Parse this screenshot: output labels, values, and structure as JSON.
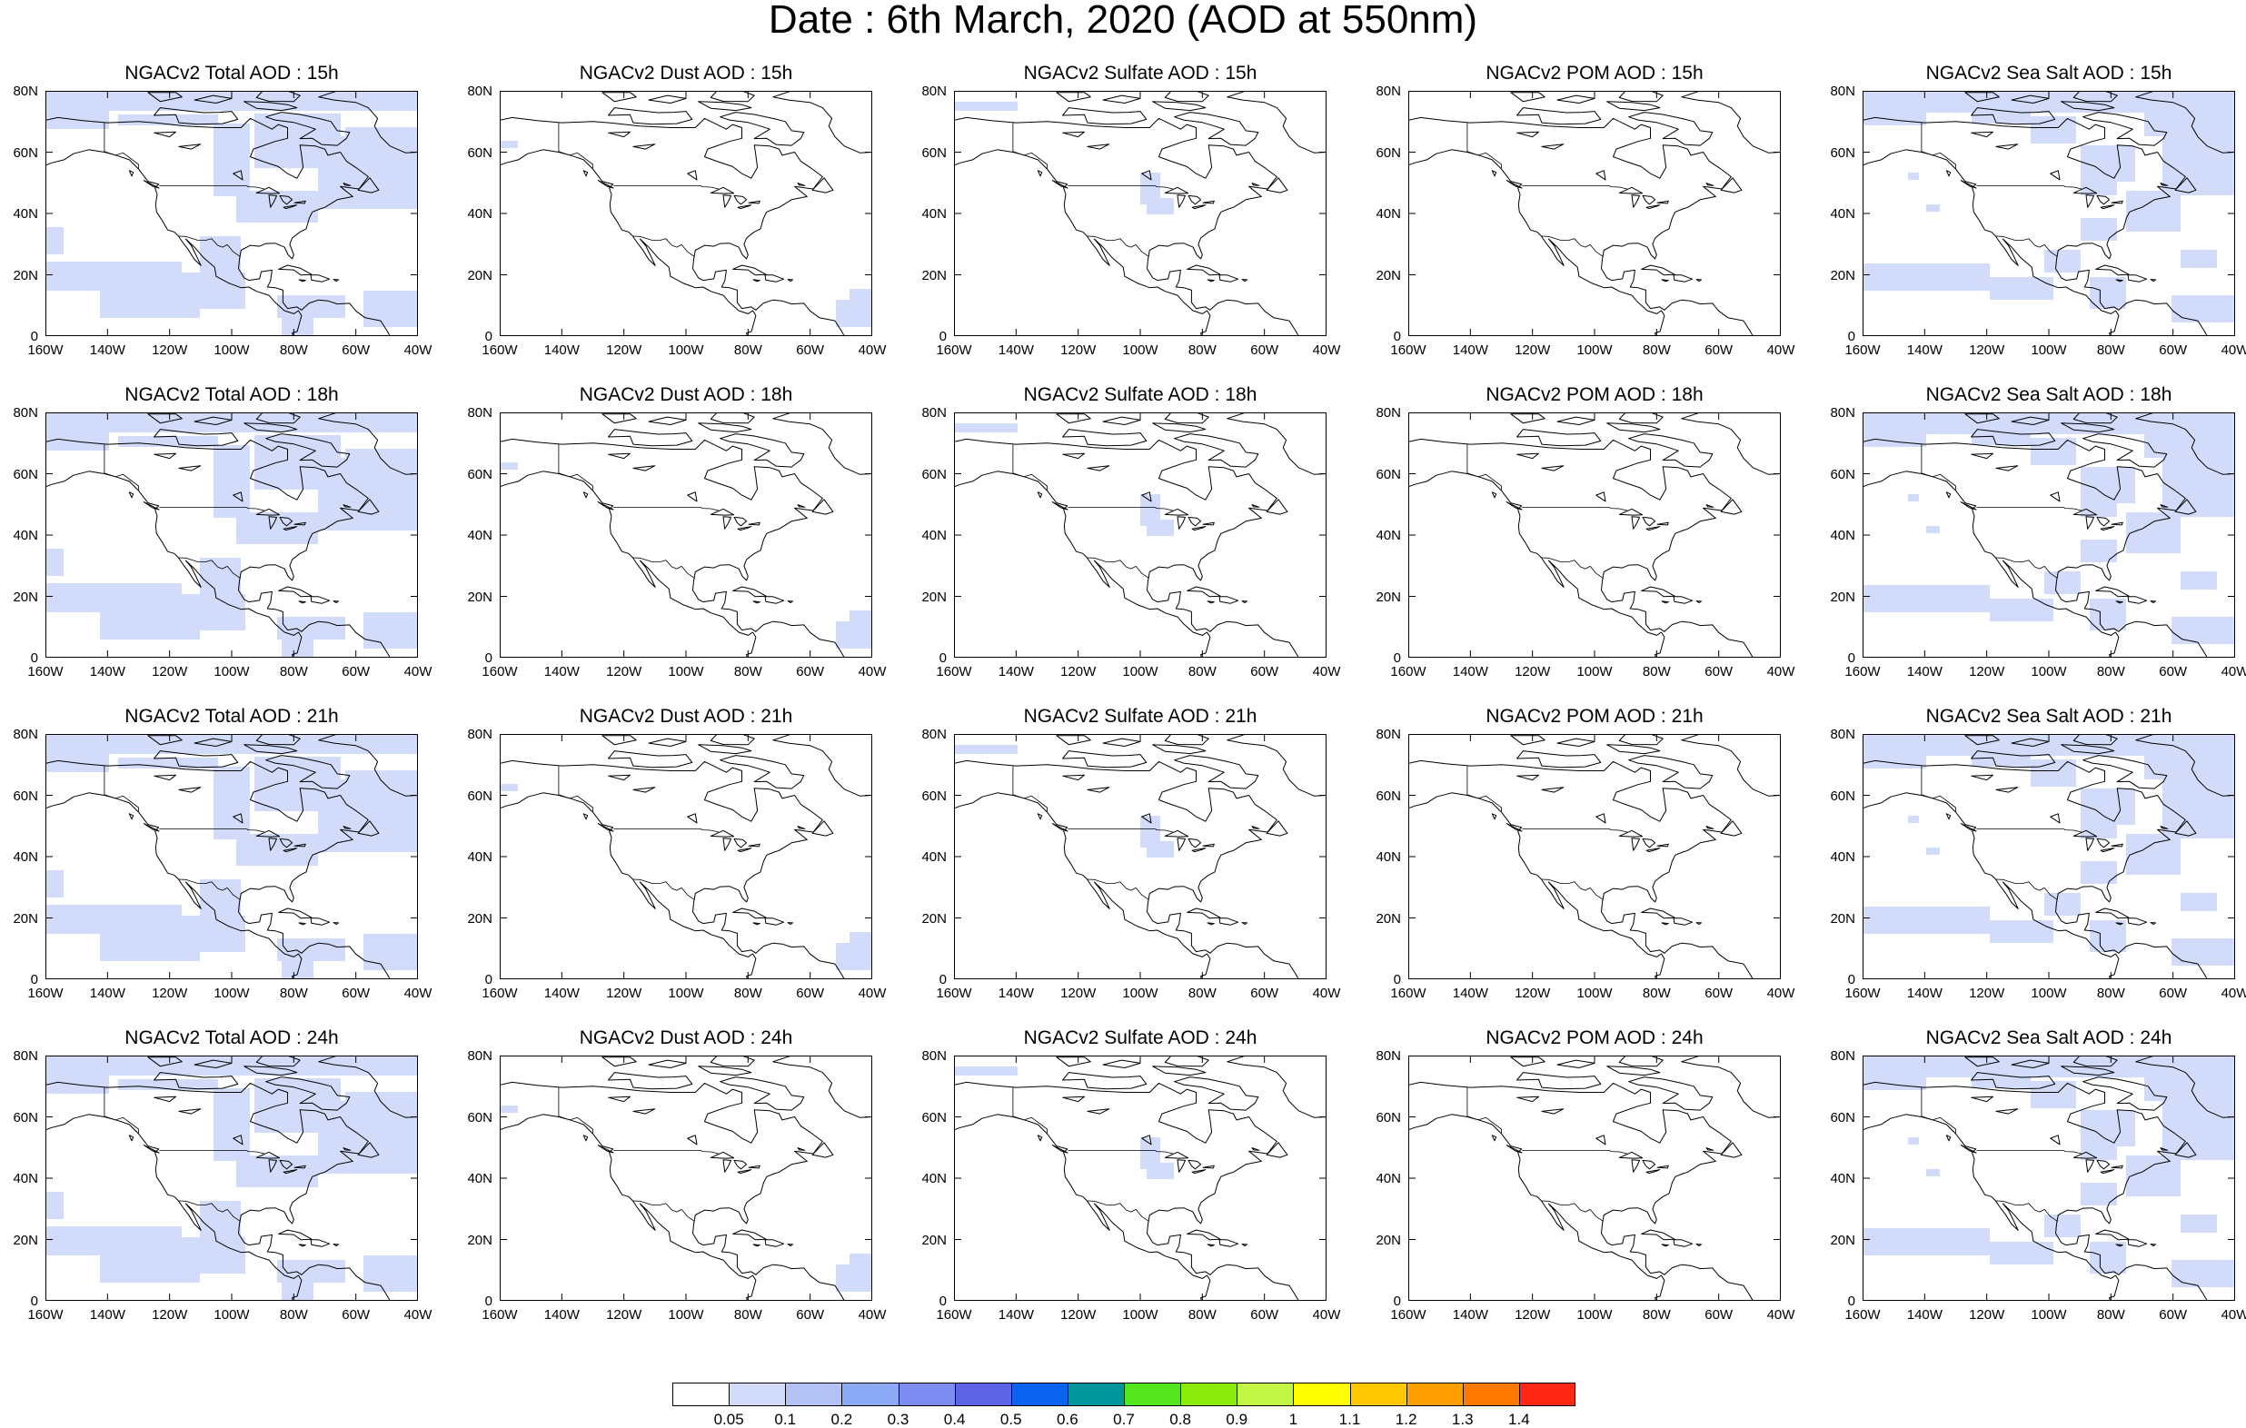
{
  "title": "Date : 6th March, 2020 (AOD at 550nm)",
  "axes": {
    "lat_labels": [
      "80N",
      "60N",
      "40N",
      "20N",
      "0"
    ],
    "lon_labels": [
      "160W",
      "140W",
      "120W",
      "100W",
      "80W",
      "60W",
      "40W"
    ],
    "lon_range": [
      -160,
      -40
    ],
    "lat_range": [
      0,
      80
    ]
  },
  "panels": [
    {
      "title": "NGACv2 Total AOD : 15h",
      "species": "total",
      "hour": 15
    },
    {
      "title": "NGACv2 Dust AOD : 15h",
      "species": "dust",
      "hour": 15
    },
    {
      "title": "NGACv2 Sulfate AOD : 15h",
      "species": "sulfate",
      "hour": 15
    },
    {
      "title": "NGACv2 POM AOD : 15h",
      "species": "pom",
      "hour": 15
    },
    {
      "title": "NGACv2 Sea Salt AOD : 15h",
      "species": "seasalt",
      "hour": 15
    },
    {
      "title": "NGACv2 Total AOD : 18h",
      "species": "total",
      "hour": 18
    },
    {
      "title": "NGACv2 Dust AOD : 18h",
      "species": "dust",
      "hour": 18
    },
    {
      "title": "NGACv2 Sulfate AOD : 18h",
      "species": "sulfate",
      "hour": 18
    },
    {
      "title": "NGACv2 POM AOD : 18h",
      "species": "pom",
      "hour": 18
    },
    {
      "title": "NGACv2 Sea Salt AOD : 18h",
      "species": "seasalt",
      "hour": 18
    },
    {
      "title": "NGACv2 Total AOD : 21h",
      "species": "total",
      "hour": 21
    },
    {
      "title": "NGACv2 Dust AOD : 21h",
      "species": "dust",
      "hour": 21
    },
    {
      "title": "NGACv2 Sulfate AOD : 21h",
      "species": "sulfate",
      "hour": 21
    },
    {
      "title": "NGACv2 POM AOD : 21h",
      "species": "pom",
      "hour": 21
    },
    {
      "title": "NGACv2 Sea Salt AOD : 21h",
      "species": "seasalt",
      "hour": 21
    },
    {
      "title": "NGACv2 Total AOD : 24h",
      "species": "total",
      "hour": 24
    },
    {
      "title": "NGACv2 Dust AOD : 24h",
      "species": "dust",
      "hour": 24
    },
    {
      "title": "NGACv2 Sulfate AOD : 24h",
      "species": "sulfate",
      "hour": 24
    },
    {
      "title": "NGACv2 POM AOD : 24h",
      "species": "pom",
      "hour": 24
    },
    {
      "title": "NGACv2 Sea Salt  AOD : 24h",
      "species": "seasalt",
      "hour": 24
    }
  ],
  "colorbar": {
    "labels": [
      "0.05",
      "0.1",
      "0.2",
      "0.3",
      "0.4",
      "0.5",
      "0.6",
      "0.7",
      "0.8",
      "0.9",
      "1",
      "1.1",
      "1.2",
      "1.3",
      "1.4"
    ],
    "colors": [
      "#ffffff",
      "#d2dcfa",
      "#b4c3f5",
      "#8caaf5",
      "#7d8cf0",
      "#5f64e6",
      "#0a64f0",
      "#00969b",
      "#55e61e",
      "#8ceb0a",
      "#c3f546",
      "#ffff00",
      "#ffc800",
      "#ffa000",
      "#ff7800",
      "#ff2814"
    ]
  },
  "fill_color_used": "#d2dcfa",
  "coastline_color": "#000000"
}
